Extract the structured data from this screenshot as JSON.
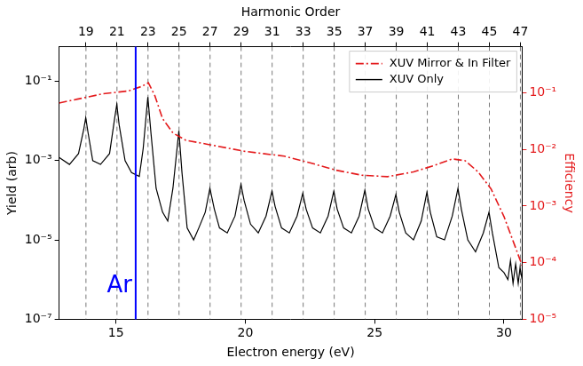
{
  "chart_data": {
    "type": "line",
    "xlabel": "Electron energy (eV)",
    "ylabel": "Yield (arb)",
    "y2label": "Efficiency",
    "x2label": "Harmonic Order",
    "xlim": [
      12.8,
      30.7
    ],
    "xticks": [
      15,
      20,
      25,
      30
    ],
    "x2lim": [
      17.27,
      47.11
    ],
    "x2ticks": [
      19,
      21,
      23,
      25,
      27,
      29,
      31,
      33,
      35,
      37,
      39,
      41,
      43,
      45,
      47
    ],
    "ylim": [
      1e-07,
      0.74
    ],
    "yticks": [
      {
        "value": 1e-07,
        "label": "10⁻⁷"
      },
      {
        "value": 1e-05,
        "label": "10⁻⁵"
      },
      {
        "value": 0.001,
        "label": "10⁻³"
      },
      {
        "value": 0.1,
        "label": "10⁻¹"
      }
    ],
    "y2lim": [
      1e-05,
      0.65
    ],
    "y2ticks": [
      {
        "value": 1e-05,
        "label": "10⁻⁵"
      },
      {
        "value": 0.0001,
        "label": "10⁻⁴"
      },
      {
        "value": 0.001,
        "label": "10⁻³"
      },
      {
        "value": 0.01,
        "label": "10⁻²"
      },
      {
        "value": 0.1,
        "label": "10⁻¹"
      }
    ],
    "log": "y",
    "grid": true,
    "legend": "upper right",
    "annotations": [
      {
        "text": "Ar",
        "x": 15.76,
        "color": "#0000ff"
      }
    ],
    "series": [
      {
        "name": "XUV Mirror & In Filter",
        "color": "#e41a1c",
        "line_style": "dashdot",
        "axis": "y2",
        "x": [
          12.8,
          13.5,
          14.5,
          15.5,
          16.0,
          16.25,
          16.5,
          16.8,
          17.2,
          17.7,
          18.5,
          20.0,
          21.5,
          22.5,
          23.5,
          24.5,
          25.5,
          26.5,
          27.3,
          28.0,
          28.5,
          29.0,
          29.5,
          30.0,
          30.4,
          30.7
        ],
        "values": [
          0.066,
          0.077,
          0.096,
          0.108,
          0.13,
          0.15,
          0.089,
          0.035,
          0.0195,
          0.0145,
          0.0124,
          0.0092,
          0.0076,
          0.0058,
          0.0043,
          0.0035,
          0.0033,
          0.004,
          0.0052,
          0.0068,
          0.0063,
          0.004,
          0.002,
          0.00065,
          0.00021,
          8.9e-05
        ]
      },
      {
        "name": "XUV Only",
        "color": "#000000",
        "line_style": "solid",
        "x": [
          12.8,
          13.2,
          13.55,
          13.75,
          13.83,
          13.92,
          14.1,
          14.4,
          14.75,
          14.95,
          15.03,
          15.12,
          15.35,
          15.6,
          15.9,
          16.05,
          16.23,
          16.35,
          16.55,
          16.8,
          17.0,
          17.2,
          17.43,
          17.55,
          17.75,
          18.0,
          18.2,
          18.45,
          18.63,
          18.8,
          19.0,
          19.3,
          19.6,
          19.83,
          19.95,
          20.2,
          20.5,
          20.8,
          21.03,
          21.15,
          21.4,
          21.7,
          22.0,
          22.22,
          22.35,
          22.6,
          22.9,
          23.2,
          23.42,
          23.55,
          23.8,
          24.1,
          24.4,
          24.62,
          24.75,
          25.0,
          25.3,
          25.6,
          25.82,
          25.95,
          26.2,
          26.5,
          26.8,
          27.02,
          27.15,
          27.4,
          27.7,
          28.0,
          28.22,
          28.35,
          28.6,
          28.9,
          29.2,
          29.42,
          29.55,
          29.8,
          30.0,
          30.15,
          30.25,
          30.35,
          30.45,
          30.55,
          30.62,
          30.7
        ],
        "values": [
          0.0012,
          0.0008,
          0.0015,
          0.006,
          0.012,
          0.005,
          0.001,
          0.0008,
          0.0015,
          0.012,
          0.026,
          0.008,
          0.001,
          0.0005,
          0.0004,
          0.002,
          0.04,
          0.005,
          0.0002,
          5e-05,
          3e-05,
          0.0002,
          0.0056,
          0.0005,
          2e-05,
          1e-05,
          2e-05,
          5e-05,
          0.0002,
          6e-05,
          2e-05,
          1.5e-05,
          4e-05,
          0.00025,
          0.0001,
          2.5e-05,
          1.5e-05,
          4e-05,
          0.00017,
          7e-05,
          2e-05,
          1.5e-05,
          4e-05,
          0.00015,
          6e-05,
          2e-05,
          1.5e-05,
          4e-05,
          0.00017,
          6e-05,
          2e-05,
          1.5e-05,
          4e-05,
          0.00018,
          6e-05,
          2e-05,
          1.5e-05,
          4e-05,
          0.00014,
          5e-05,
          1.5e-05,
          1e-05,
          3e-05,
          0.00016,
          5e-05,
          1.2e-05,
          1e-05,
          4e-05,
          0.0002,
          6e-05,
          1e-05,
          5e-06,
          1.5e-05,
          5e-05,
          1.5e-05,
          2e-06,
          1.5e-06,
          1e-06,
          3e-06,
          8e-07,
          2.5e-06,
          8e-07,
          2e-06,
          1e-06
        ]
      }
    ]
  }
}
